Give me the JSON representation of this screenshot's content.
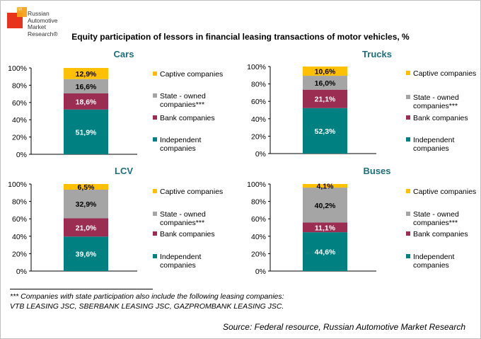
{
  "logo": {
    "small_text": "НАПИ",
    "lines": [
      "Russian",
      "Automotive",
      "Market",
      "Research®"
    ]
  },
  "title": "Equity participation of lessors in financial leasing transactions of motor vehicles, %",
  "colors": {
    "captive": "#ffc000",
    "state": "#a5a5a5",
    "bank": "#9b2d52",
    "independent": "#008080"
  },
  "chart_data": [
    {
      "type": "bar",
      "stacked": true,
      "title": "Cars",
      "categories": [
        "Cars"
      ],
      "ylim": [
        0,
        100
      ],
      "yticks": [
        "0%",
        "20%",
        "40%",
        "60%",
        "80%",
        "100%"
      ],
      "series": [
        {
          "name": "Independent companies",
          "key": "independent",
          "values": [
            51.9
          ],
          "label": "51,9%"
        },
        {
          "name": "Bank companies",
          "key": "bank",
          "values": [
            18.6
          ],
          "label": "18,6%"
        },
        {
          "name": "State - owned companies***",
          "key": "state",
          "values": [
            16.6
          ],
          "label": "16,6%"
        },
        {
          "name": "Captive companies",
          "key": "captive",
          "values": [
            12.9
          ],
          "label": "12,9%"
        }
      ]
    },
    {
      "type": "bar",
      "stacked": true,
      "title": "Trucks",
      "categories": [
        "Trucks"
      ],
      "ylim": [
        0,
        100
      ],
      "yticks": [
        "0%",
        "20%",
        "40%",
        "60%",
        "80%",
        "100%"
      ],
      "series": [
        {
          "name": "Independent companies",
          "key": "independent",
          "values": [
            52.3
          ],
          "label": "52,3%"
        },
        {
          "name": "Bank companies",
          "key": "bank",
          "values": [
            21.1
          ],
          "label": "21,1%"
        },
        {
          "name": "State - owned companies***",
          "key": "state",
          "values": [
            16.0
          ],
          "label": "16,0%"
        },
        {
          "name": "Captive companies",
          "key": "captive",
          "values": [
            10.6
          ],
          "label": "10,6%"
        }
      ]
    },
    {
      "type": "bar",
      "stacked": true,
      "title": "LCV",
      "categories": [
        "LCV"
      ],
      "ylim": [
        0,
        100
      ],
      "yticks": [
        "0%",
        "20%",
        "40%",
        "60%",
        "80%",
        "100%"
      ],
      "series": [
        {
          "name": "Independent companies",
          "key": "independent",
          "values": [
            39.6
          ],
          "label": "39,6%"
        },
        {
          "name": "Bank companies",
          "key": "bank",
          "values": [
            21.0
          ],
          "label": "21,0%"
        },
        {
          "name": "State - owned companies***",
          "key": "state",
          "values": [
            32.9
          ],
          "label": "32,9%"
        },
        {
          "name": "Captive companies",
          "key": "captive",
          "values": [
            6.5
          ],
          "label": "6,5%"
        }
      ]
    },
    {
      "type": "bar",
      "stacked": true,
      "title": "Buses",
      "categories": [
        "Buses"
      ],
      "ylim": [
        0,
        100
      ],
      "yticks": [
        "0%",
        "20%",
        "40%",
        "60%",
        "80%",
        "100%"
      ],
      "series": [
        {
          "name": "Independent companies",
          "key": "independent",
          "values": [
            44.6
          ],
          "label": "44,6%"
        },
        {
          "name": "Bank companies",
          "key": "bank",
          "values": [
            11.1
          ],
          "label": "11,1%"
        },
        {
          "name": "State - owned companies***",
          "key": "state",
          "values": [
            40.2
          ],
          "label": "40,2%"
        },
        {
          "name": "Captive companies",
          "key": "captive",
          "values": [
            4.1
          ],
          "label": "4,1%"
        }
      ]
    }
  ],
  "legend": [
    {
      "key": "captive",
      "lines": [
        "Captive companies"
      ]
    },
    {
      "key": "state",
      "lines": [
        "State - owned",
        "companies***"
      ]
    },
    {
      "key": "bank",
      "lines": [
        "Bank companies"
      ]
    },
    {
      "key": "independent",
      "lines": [
        "Independent",
        "companies"
      ]
    }
  ],
  "footnote": {
    "line1": "*** Companies with state participation also include the following leasing companies:",
    "line2": "VTB LEASING JSC, SBERBANK LEASING JSC, GAZPROMBANK LEASING JSC."
  },
  "source": "Source: Federal resource, Russian Automotive Market Research"
}
